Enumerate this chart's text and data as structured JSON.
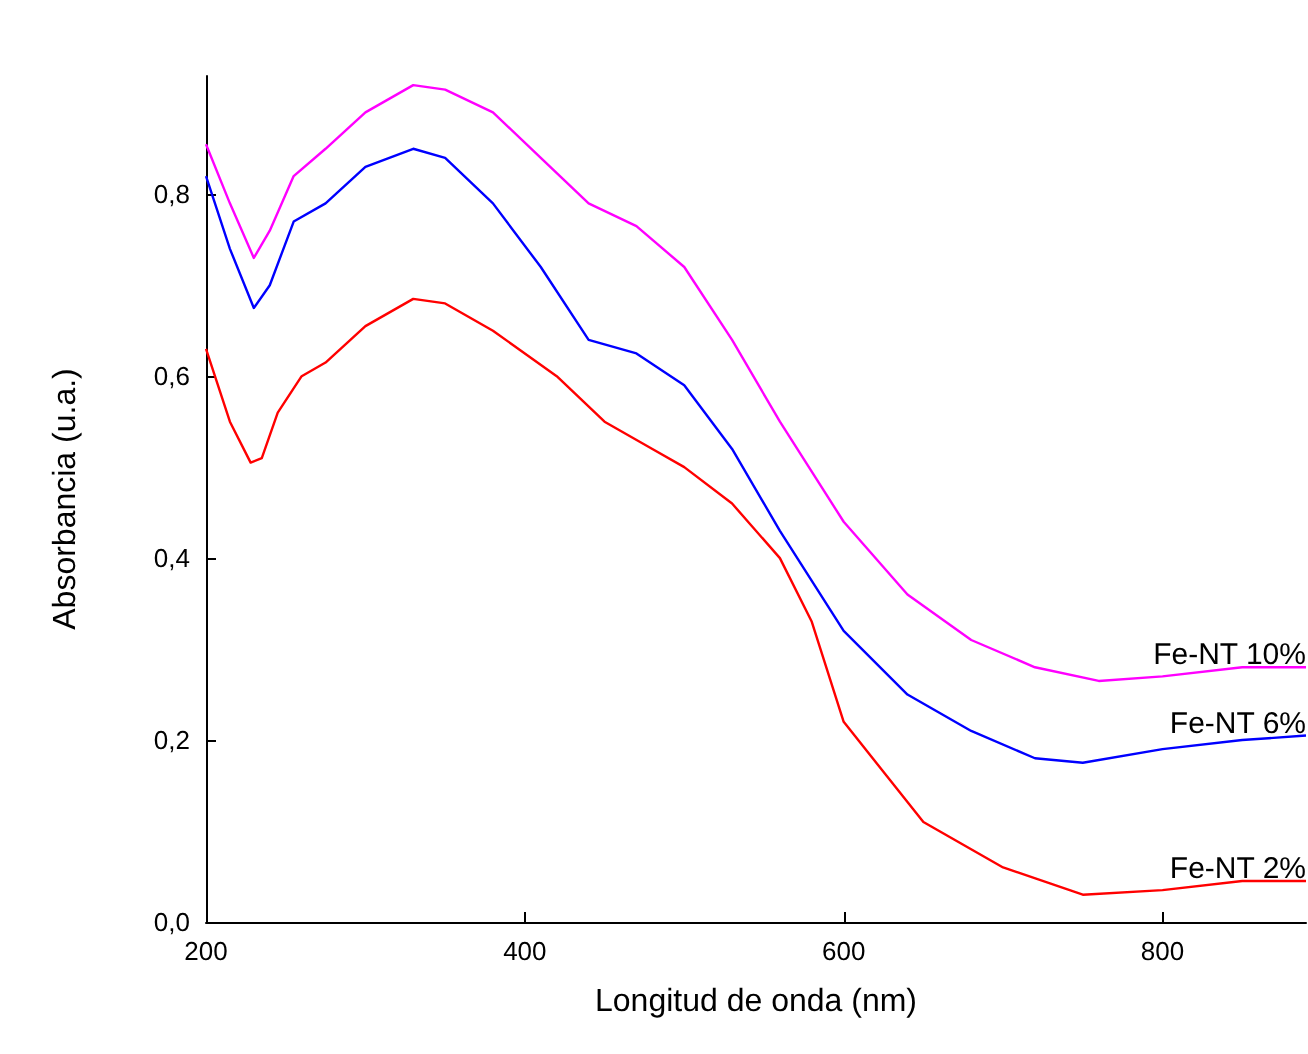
{
  "chart_data": {
    "type": "line",
    "xlabel": "Longitud de onda (nm)",
    "ylabel": "Absorbancia (u.a.)",
    "xlim": [
      200,
      890
    ],
    "xticks": [
      200,
      400,
      600,
      800
    ],
    "ylim": [
      0,
      0.93
    ],
    "yticks": [
      {
        "value": 0,
        "label": "0,0"
      },
      {
        "value": 0.2,
        "label": "0,2"
      },
      {
        "value": 0.4,
        "label": "0,4"
      },
      {
        "value": 0.6,
        "label": "0,6"
      },
      {
        "value": 0.8,
        "label": "0,8"
      }
    ],
    "grid": false,
    "legend": false,
    "marker": "none",
    "line_style": "solid",
    "series": [
      {
        "name": "Fe-NT 10%",
        "color": "#ff00ff",
        "x": [
          200,
          215,
          230,
          240,
          255,
          275,
          300,
          330,
          350,
          380,
          410,
          440,
          470,
          500,
          530,
          560,
          600,
          640,
          680,
          720,
          760,
          800,
          850,
          890
        ],
        "values": [
          0.855,
          0.79,
          0.73,
          0.76,
          0.82,
          0.85,
          0.89,
          0.92,
          0.915,
          0.89,
          0.84,
          0.79,
          0.765,
          0.72,
          0.64,
          0.55,
          0.44,
          0.36,
          0.31,
          0.28,
          0.265,
          0.27,
          0.28,
          0.28
        ]
      },
      {
        "name": "Fe-NT 6%",
        "color": "#0000ff",
        "x": [
          200,
          215,
          230,
          240,
          255,
          275,
          300,
          330,
          350,
          380,
          410,
          440,
          470,
          500,
          530,
          560,
          600,
          640,
          680,
          720,
          750,
          800,
          850,
          890
        ],
        "values": [
          0.82,
          0.74,
          0.675,
          0.7,
          0.77,
          0.79,
          0.83,
          0.85,
          0.84,
          0.79,
          0.72,
          0.64,
          0.625,
          0.59,
          0.52,
          0.43,
          0.32,
          0.25,
          0.21,
          0.18,
          0.175,
          0.19,
          0.2,
          0.205
        ]
      },
      {
        "name": "Fe-NT 2%",
        "color": "#ff0000",
        "x": [
          200,
          215,
          228,
          235,
          245,
          260,
          275,
          300,
          330,
          350,
          380,
          420,
          450,
          480,
          500,
          530,
          560,
          580,
          600,
          650,
          700,
          750,
          800,
          850,
          890
        ],
        "values": [
          0.63,
          0.55,
          0.505,
          0.51,
          0.56,
          0.6,
          0.615,
          0.655,
          0.685,
          0.68,
          0.65,
          0.6,
          0.55,
          0.52,
          0.5,
          0.46,
          0.4,
          0.33,
          0.22,
          0.11,
          0.06,
          0.03,
          0.035,
          0.045,
          0.045
        ]
      }
    ]
  }
}
